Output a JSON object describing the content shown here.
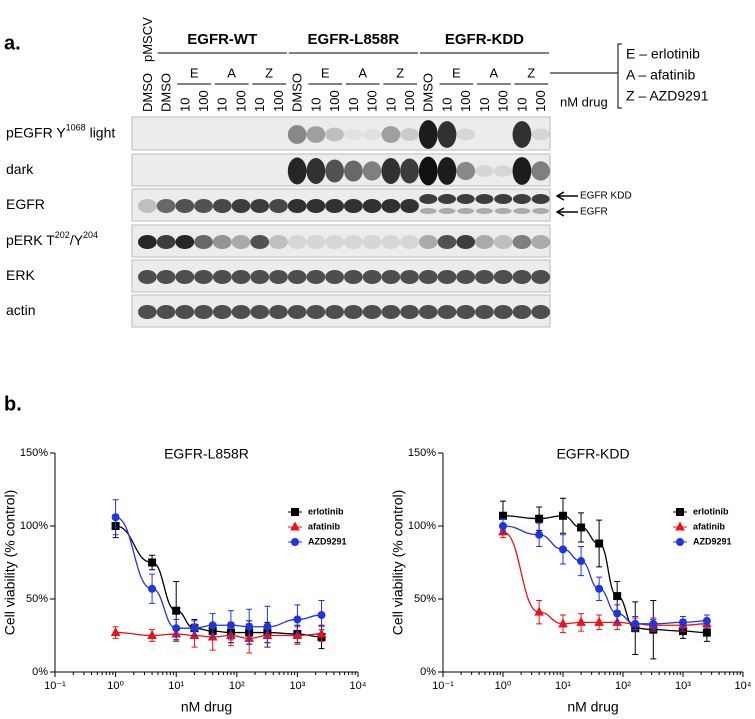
{
  "panel_a": {
    "label": "a.",
    "vector": "pMSCV",
    "groups": [
      {
        "name": "EGFR-WT",
        "drugs": [
          "E",
          "A",
          "Z"
        ]
      },
      {
        "name": "EGFR-L858R",
        "drugs": [
          "E",
          "A",
          "Z"
        ]
      },
      {
        "name": "EGFR-KDD",
        "drugs": [
          "E",
          "A",
          "Z"
        ]
      }
    ],
    "lanes": [
      "DMSO",
      "DMSO",
      "10",
      "100",
      "10",
      "100",
      "10",
      "100",
      "DMSO",
      "10",
      "100",
      "10",
      "100",
      "10",
      "100",
      "DMSO",
      "10",
      "100",
      "10",
      "100",
      "10",
      "100"
    ],
    "drug_key": [
      "E – erlotinib",
      "A – afatinib",
      "Z – AZD9291"
    ],
    "dose_unit": "nM drug",
    "rows": [
      {
        "label": [
          {
            "text": "pEGFR Y"
          },
          {
            "sup": "1068"
          },
          {
            "text": " light"
          }
        ]
      },
      {
        "label": [
          {
            "text": "dark"
          }
        ]
      },
      {
        "label": [
          {
            "text": "EGFR"
          }
        ]
      },
      {
        "label": [
          {
            "text": "pERK T"
          },
          {
            "sup": "202"
          },
          {
            "text": "/Y"
          },
          {
            "sup": "204"
          }
        ]
      },
      {
        "label": [
          {
            "text": "ERK"
          }
        ]
      },
      {
        "label": [
          {
            "text": "actin"
          }
        ]
      }
    ],
    "band_markers": [
      "EGFR KDD",
      "EGFR"
    ]
  },
  "panel_b_label": "b.",
  "chart_data": [
    {
      "type": "line",
      "title": "EGFR-L858R",
      "xlabel": "nM drug",
      "ylabel": "Cell viability (% control)",
      "xscale": "log",
      "xlim": [
        0.1,
        10000
      ],
      "xticks": [
        {
          "value": 0.1,
          "label": "10⁻¹"
        },
        {
          "value": 1,
          "label": "10⁰"
        },
        {
          "value": 10,
          "label": "10¹"
        },
        {
          "value": 100,
          "label": "10²"
        },
        {
          "value": 1000,
          "label": "10³"
        },
        {
          "value": 10000,
          "label": "10⁴"
        }
      ],
      "ylim": [
        0,
        150
      ],
      "yticks": [
        {
          "value": 0,
          "label": "0%"
        },
        {
          "value": 50,
          "label": "50%"
        },
        {
          "value": 100,
          "label": "100%"
        },
        {
          "value": 150,
          "label": "150%"
        }
      ],
      "legend": "upper right",
      "x": [
        1,
        4,
        10,
        20,
        40,
        80,
        160,
        320,
        1000,
        2500
      ],
      "series": [
        {
          "name": "erlotinib",
          "color": "#000000",
          "marker": "square",
          "values": [
            100,
            75,
            42,
            30,
            28,
            27,
            27,
            27,
            26,
            24
          ],
          "errors": [
            8,
            5,
            20,
            6,
            5,
            7,
            8,
            7,
            6,
            8
          ]
        },
        {
          "name": "afatinib",
          "color": "#e8141c",
          "marker": "triangle",
          "values": [
            27,
            25,
            26,
            25,
            24,
            25,
            23,
            25,
            25,
            26
          ],
          "errors": [
            4,
            4,
            5,
            8,
            9,
            7,
            10,
            8,
            6,
            5
          ]
        },
        {
          "name": "AZD9291",
          "color": "#1f35e0",
          "marker": "circle",
          "values": [
            106,
            57,
            30,
            30,
            32,
            32,
            31,
            31,
            36,
            39
          ],
          "errors": [
            12,
            10,
            6,
            5,
            8,
            10,
            12,
            14,
            10,
            10
          ]
        }
      ]
    },
    {
      "type": "line",
      "title": "EGFR-KDD",
      "xlabel": "nM drug",
      "ylabel": "Cell viability (% control)",
      "xscale": "log",
      "xlim": [
        0.1,
        10000
      ],
      "xticks": [
        {
          "value": 0.1,
          "label": "10⁻¹"
        },
        {
          "value": 1,
          "label": "10⁰"
        },
        {
          "value": 10,
          "label": "10¹"
        },
        {
          "value": 100,
          "label": "10²"
        },
        {
          "value": 1000,
          "label": "10³"
        },
        {
          "value": 10000,
          "label": "10⁴"
        }
      ],
      "ylim": [
        0,
        150
      ],
      "yticks": [
        {
          "value": 0,
          "label": "0%"
        },
        {
          "value": 50,
          "label": "50%"
        },
        {
          "value": 100,
          "label": "100%"
        },
        {
          "value": 150,
          "label": "150%"
        }
      ],
      "legend": "upper right",
      "x": [
        1,
        4,
        10,
        20,
        40,
        80,
        160,
        320,
        1000,
        2500
      ],
      "series": [
        {
          "name": "erlotinib",
          "color": "#000000",
          "marker": "square",
          "values": [
            107,
            105,
            107,
            99,
            88,
            52,
            30,
            29,
            28,
            27
          ],
          "errors": [
            10,
            8,
            12,
            10,
            16,
            10,
            18,
            20,
            5,
            6
          ]
        },
        {
          "name": "afatinib",
          "color": "#e8141c",
          "marker": "triangle",
          "values": [
            96,
            41,
            33,
            34,
            34,
            34,
            33,
            32,
            32,
            33
          ],
          "errors": [
            4,
            8,
            6,
            6,
            5,
            5,
            4,
            4,
            4,
            3
          ]
        },
        {
          "name": "AZD9291",
          "color": "#1f35e0",
          "marker": "circle",
          "values": [
            100,
            94,
            84,
            76,
            57,
            40,
            33,
            33,
            34,
            35
          ],
          "errors": [
            5,
            8,
            10,
            10,
            8,
            6,
            5,
            4,
            4,
            4
          ]
        }
      ]
    }
  ]
}
